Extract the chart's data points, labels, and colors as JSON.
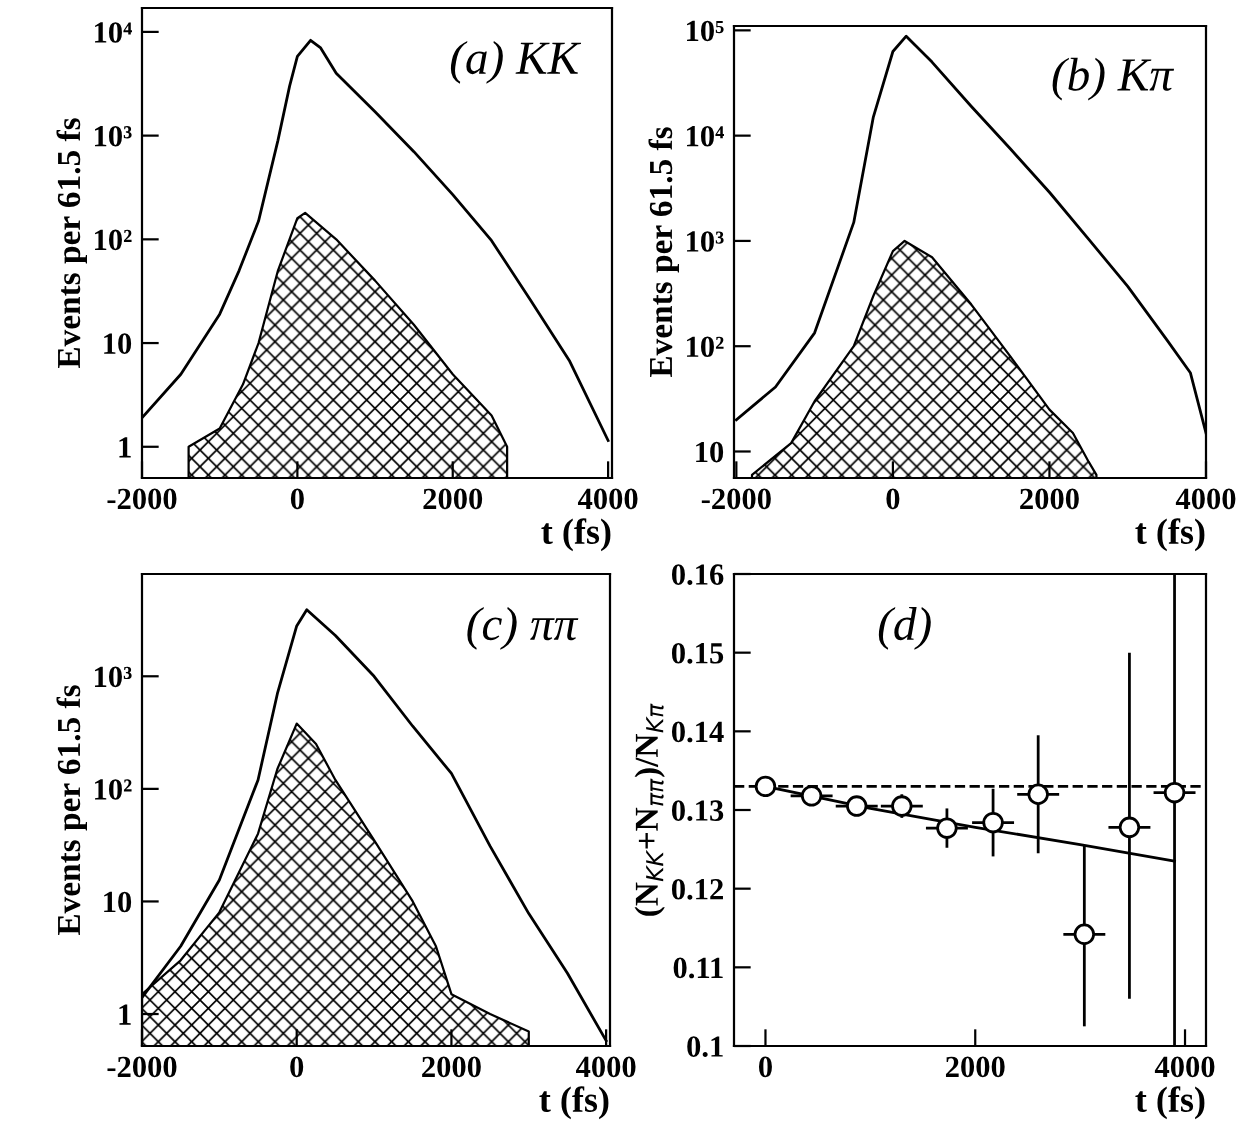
{
  "chart_data": [
    {
      "type": "line",
      "title": "(a) KK",
      "xlabel": "t (fs)",
      "ylabel": "Events per 61.5 fs",
      "log": true,
      "xlim": [
        -2000,
        4050
      ],
      "ylim": [
        0.5,
        17000
      ],
      "xticks": [
        -2000,
        0,
        2000,
        4000
      ],
      "yticks": [
        {
          "value": 1,
          "label": "1"
        },
        {
          "value": 10,
          "label": "10"
        },
        {
          "value": 100,
          "label": "10²"
        },
        {
          "value": 1000,
          "label": "10³"
        },
        {
          "value": 10000,
          "label": "10⁴"
        }
      ],
      "series": [
        {
          "color": "#000000",
          "x": [
            -2000,
            -1500,
            -1000,
            -750,
            -500,
            -250,
            -100,
            0,
            170,
            300,
            500,
            1000,
            1500,
            2000,
            2500,
            3000,
            3500,
            4000
          ],
          "values": [
            1.9,
            5,
            19,
            50,
            150,
            900,
            3000,
            5800,
            8300,
            7000,
            4000,
            1700,
            700,
            270,
            97,
            26,
            6.8,
            1.15
          ]
        },
        {
          "type": "area",
          "color": "#000000",
          "x": [
            -1400,
            -1000,
            -700,
            -500,
            -250,
            0,
            100,
            500,
            1000,
            1500,
            2000,
            2500,
            2700
          ],
          "values": [
            1,
            1.5,
            4,
            10,
            50,
            160,
            180,
            100,
            40,
            15,
            5,
            2,
            1
          ]
        }
      ]
    },
    {
      "type": "line",
      "title": "(b) Kπ",
      "xlabel": "t (fs)",
      "ylabel": "Events per 61.5 fs",
      "log": true,
      "xlim": [
        -2030,
        4000
      ],
      "ylim": [
        5.6,
        110000
      ],
      "xticks": [
        -2000,
        0,
        2000,
        4000
      ],
      "yticks": [
        {
          "value": 10,
          "label": "10"
        },
        {
          "value": 100,
          "label": "10²"
        },
        {
          "value": 1000,
          "label": "10³"
        },
        {
          "value": 10000,
          "label": "10⁴"
        },
        {
          "value": 100000,
          "label": "10⁵"
        }
      ],
      "series": [
        {
          "color": "#000000",
          "x": [
            -2000,
            -1500,
            -1000,
            -500,
            -250,
            0,
            170,
            500,
            1000,
            1500,
            2000,
            2500,
            3000,
            3500,
            3800,
            4000
          ],
          "values": [
            20,
            41,
            134,
            1500,
            15000,
            63000,
            88000,
            50000,
            19000,
            7500,
            2900,
            1040,
            370,
            115,
            56,
            15
          ]
        },
        {
          "type": "area",
          "color": "#000000",
          "x": [
            -1800,
            -1300,
            -1000,
            -500,
            -250,
            0,
            150,
            500,
            1000,
            1500,
            2000,
            2300,
            2500,
            2600
          ],
          "values": [
            6,
            12,
            30,
            100,
            300,
            800,
            1000,
            700,
            250,
            80,
            25,
            15,
            8,
            6
          ]
        }
      ]
    },
    {
      "type": "line",
      "title": "(c) ππ",
      "xlabel": "t (fs)",
      "ylabel": "Events per 61.5 fs",
      "log": true,
      "xlim": [
        -2000,
        4050
      ],
      "ylim": [
        0.52,
        8100
      ],
      "xticks": [
        -2000,
        0,
        2000,
        4000
      ],
      "yticks": [
        {
          "value": 1,
          "label": "1"
        },
        {
          "value": 10,
          "label": "10"
        },
        {
          "value": 100,
          "label": "10²"
        },
        {
          "value": 1000,
          "label": "10³"
        }
      ],
      "series": [
        {
          "color": "#000000",
          "x": [
            -2000,
            -1500,
            -1000,
            -500,
            -250,
            0,
            130,
            500,
            1000,
            1500,
            2000,
            2500,
            3000,
            3500,
            4000
          ],
          "values": [
            1.4,
            4,
            15.5,
            120,
            700,
            2800,
            3900,
            2300,
            1000,
            360,
            137,
            31,
            7.8,
            2.3,
            0.58
          ]
        },
        {
          "type": "area",
          "color": "#000000",
          "x": [
            -2000,
            -1500,
            -1000,
            -500,
            -250,
            0,
            250,
            500,
            1000,
            1500,
            1800,
            2000,
            2500,
            3000
          ],
          "values": [
            1.5,
            3,
            8,
            40,
            150,
            380,
            250,
            120,
            35,
            10,
            4,
            1.5,
            1,
            0.7
          ]
        }
      ]
    },
    {
      "type": "scatter",
      "title": "(d)",
      "xlabel": "t (fs)",
      "ylabel": "(N$_{KK}$+N$_{ππ}$)/N$_{Kπ}$",
      "xlim": [
        -300,
        4200
      ],
      "ylim": [
        0.1,
        0.16
      ],
      "xticks": [
        0,
        2000,
        4000
      ],
      "yticks": [
        {
          "value": 0.1,
          "label": "0.1"
        },
        0.11,
        0.12,
        0.13,
        0.14,
        0.15,
        0.16
      ],
      "ref_lines": [
        {
          "axis": "y",
          "value": 0.133,
          "line_style": "dashed",
          "color": "#000000"
        }
      ],
      "series": [
        {
          "marker": "circle",
          "color": "#000000",
          "x": [
            0,
            440,
            870,
            1300,
            1730,
            2170,
            2600,
            3040,
            3470,
            3900
          ],
          "values": [
            0.133,
            0.1318,
            0.1305,
            0.1305,
            0.1277,
            0.1284,
            0.132,
            0.1142,
            0.1278,
            0.1322
          ],
          "errors": [
            0.0003,
            0.0004,
            0.0005,
            [
              0.129,
              0.132
            ],
            [
              0.1252,
              0.1302
            ],
            [
              0.1241,
              0.1327
            ],
            [
              0.1245,
              0.1395
            ],
            [
              0.1025,
              0.1255
            ],
            [
              0.106,
              0.15
            ],
            [
              0.1,
              0.16
            ]
          ],
          "xerrors": [
            null,
            200,
            200,
            200,
            200,
            200,
            200,
            200,
            200,
            200
          ]
        },
        {
          "type": "line",
          "color": "#000000",
          "x": [
            0,
            1000,
            2000,
            3000,
            3900
          ],
          "values": [
            0.133,
            0.1302,
            0.1278,
            0.1256,
            0.1235
          ]
        }
      ]
    }
  ]
}
